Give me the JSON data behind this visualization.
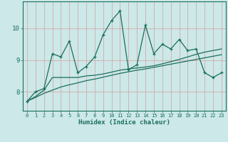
{
  "xlabel": "Humidex (Indice chaleur)",
  "x_values": [
    0,
    1,
    2,
    3,
    4,
    5,
    6,
    7,
    8,
    9,
    10,
    11,
    12,
    13,
    14,
    15,
    16,
    17,
    18,
    19,
    20,
    21,
    22,
    23
  ],
  "main_line": [
    7.7,
    8.0,
    8.1,
    9.2,
    9.1,
    9.6,
    8.6,
    8.8,
    9.1,
    9.8,
    10.25,
    10.55,
    8.7,
    8.85,
    10.1,
    9.2,
    9.5,
    9.35,
    9.65,
    9.3,
    9.35,
    8.6,
    8.45,
    8.6
  ],
  "line2": [
    7.7,
    7.85,
    8.05,
    8.45,
    8.45,
    8.45,
    8.45,
    8.5,
    8.52,
    8.56,
    8.62,
    8.68,
    8.72,
    8.75,
    8.78,
    8.82,
    8.88,
    8.95,
    9.02,
    9.1,
    9.18,
    9.25,
    9.3,
    9.35
  ],
  "line3": [
    7.7,
    7.82,
    7.95,
    8.05,
    8.15,
    8.22,
    8.28,
    8.35,
    8.4,
    8.46,
    8.52,
    8.58,
    8.63,
    8.68,
    8.72,
    8.77,
    8.82,
    8.87,
    8.92,
    8.97,
    9.02,
    9.07,
    9.12,
    9.17
  ],
  "bg_color": "#cce8e8",
  "grid_color": "#d4a0a0",
  "line_color": "#1a6e5c",
  "yticks": [
    8,
    9,
    10
  ],
  "ylim": [
    7.4,
    10.85
  ],
  "xlim": [
    -0.5,
    23.5
  ]
}
